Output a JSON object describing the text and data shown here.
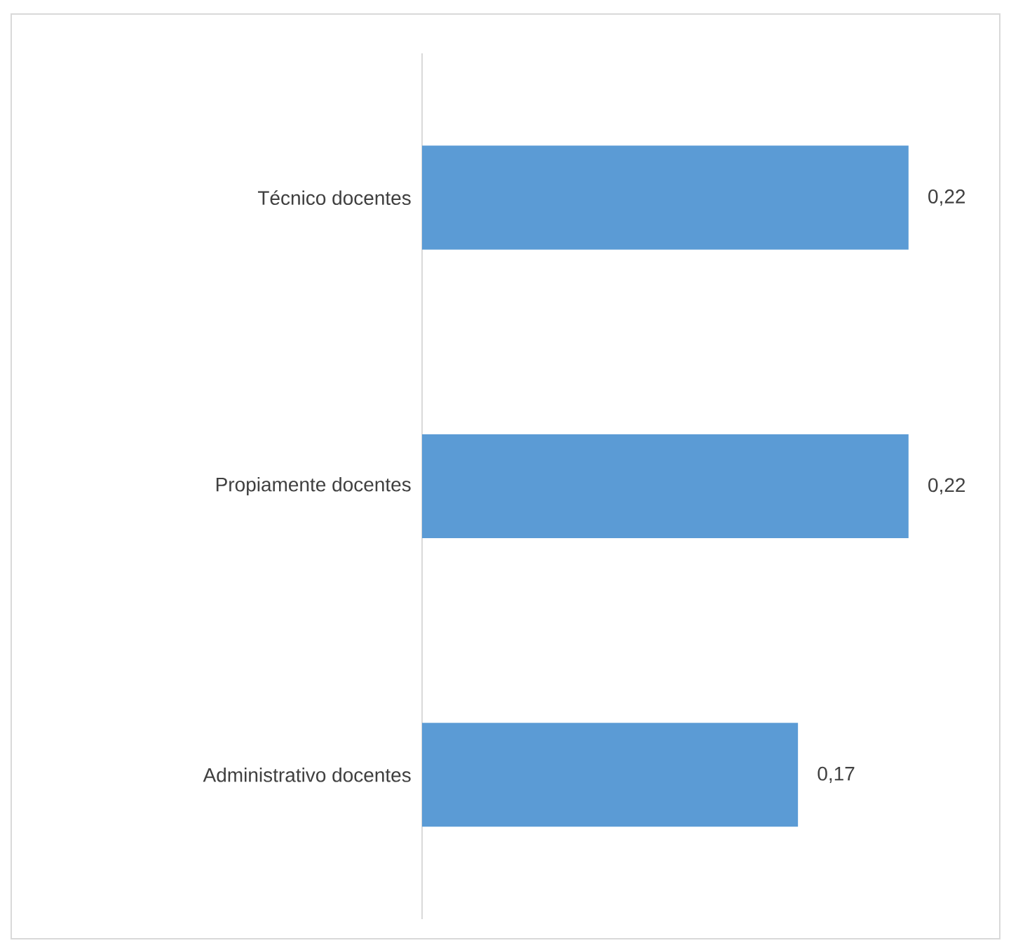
{
  "chart_data": {
    "type": "bar",
    "orientation": "horizontal",
    "categories": [
      "Técnico docentes",
      "Propiamente docentes",
      "Administrativo docentes"
    ],
    "values": [
      0.22,
      0.22,
      0.17
    ],
    "value_labels": [
      "0,22",
      "0,22",
      "0,17"
    ],
    "color": "#5b9bd5",
    "xlim": [
      0,
      0.26
    ],
    "tick_labels": "y"
  }
}
